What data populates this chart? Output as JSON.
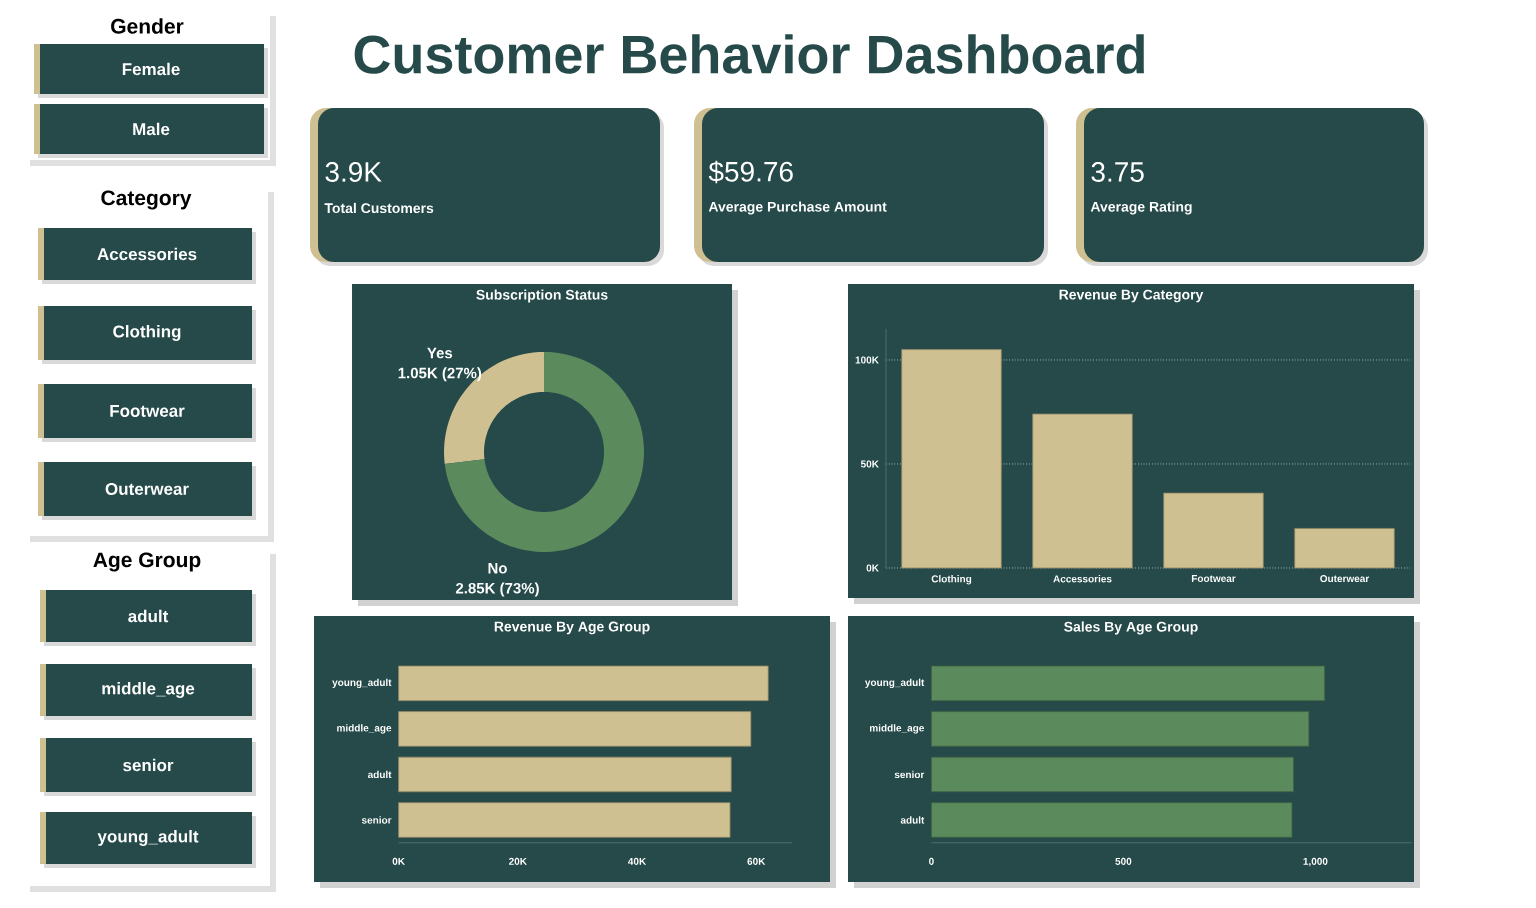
{
  "chart_data": [
    {
      "type": "other",
      "title": "Customer Behavior Dashboard"
    },
    {
      "type": "other",
      "title": "Gender",
      "annotations": [
        "Female",
        "Male"
      ]
    },
    {
      "type": "other",
      "title": "Category",
      "annotations": [
        "Accessories",
        "Clothing",
        "Footwear",
        "Outerwear"
      ]
    },
    {
      "type": "other",
      "title": "Age Group",
      "annotations": [
        "adult",
        "middle_age",
        "senior",
        "young_adult"
      ]
    },
    {
      "type": "other",
      "annotations": [
        "3.9K",
        "Total Customers"
      ]
    },
    {
      "type": "other",
      "annotations": [
        "$59.76",
        "Average Purchase Amount"
      ]
    },
    {
      "type": "other",
      "annotations": [
        "3.75",
        "Average Rating"
      ]
    },
    {
      "type": "donut",
      "title": "Subscription Status",
      "categories": [
        "Yes",
        "No"
      ],
      "values": [
        1050,
        2850
      ],
      "colors": [
        "#cfc091",
        "#5b8a5d"
      ],
      "value_labels": [
        "1.05K (27%)",
        "2.85K (73%)"
      ]
    },
    {
      "type": "bar",
      "title": "Revenue By Category",
      "categories": [
        "Clothing",
        "Accessories",
        "Footwear",
        "Outerwear"
      ],
      "values": [
        105000,
        74000,
        36000,
        19000
      ],
      "color": "#cfc091",
      "ylim": [
        0,
        115000
      ],
      "yticks": [
        {
          "value": 0,
          "label": "0K"
        },
        {
          "value": 50000,
          "label": "50K"
        },
        {
          "value": 100000,
          "label": "100K"
        }
      ],
      "grid": "y"
    },
    {
      "type": "bar",
      "orientation": "horizontal",
      "title": "Revenue By Age Group",
      "categories": [
        "young_adult",
        "middle_age",
        "adult",
        "senior"
      ],
      "values": [
        62000,
        59100,
        55800,
        55600
      ],
      "color": "#cfc091",
      "xlim": [
        0,
        66000
      ],
      "xticks": [
        {
          "value": 0,
          "label": "0K"
        },
        {
          "value": 20000,
          "label": "20K"
        },
        {
          "value": 40000,
          "label": "40K"
        },
        {
          "value": 60000,
          "label": "60K"
        }
      ]
    },
    {
      "type": "bar",
      "orientation": "horizontal",
      "title": "Sales By Age Group",
      "categories": [
        "young_adult",
        "middle_age",
        "senior",
        "adult"
      ],
      "values": [
        1024,
        983,
        943,
        939
      ],
      "color": "#5b8a5d",
      "xlim": [
        0,
        1250
      ],
      "xticks": [
        0,
        500,
        {
          "value": 1000,
          "label": "1,000"
        }
      ]
    }
  ]
}
